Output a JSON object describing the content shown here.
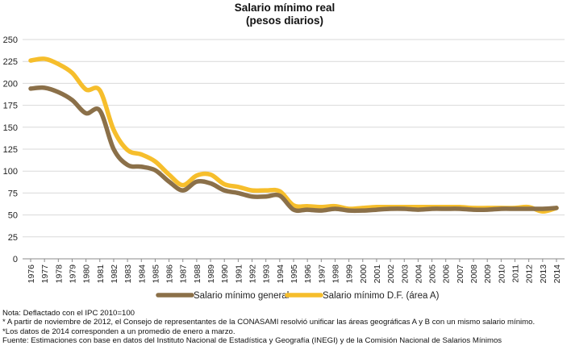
{
  "chart_data": {
    "type": "line",
    "title": "Salario mínimo real",
    "subtitle": "(pesos diarios)",
    "xlabel": "",
    "ylabel": "",
    "ylim": [
      0,
      250
    ],
    "yticks": [
      0,
      25,
      50,
      75,
      100,
      125,
      150,
      175,
      200,
      225,
      250
    ],
    "grid": true,
    "legend_position": "bottom",
    "x": [
      "1976",
      "1977",
      "1978",
      "1979",
      "1980",
      "1981",
      "1982",
      "1983",
      "1984",
      "1985",
      "1986",
      "1987",
      "1988",
      "1989",
      "1990",
      "1991",
      "1992",
      "1993",
      "1994",
      "1995",
      "1996",
      "1997",
      "1998",
      "1999",
      "2000",
      "2001",
      "2002",
      "2003",
      "2004",
      "2005",
      "2006",
      "2007",
      "2008",
      "2009",
      "2010",
      "2011",
      "2012",
      "2013",
      "2014"
    ],
    "series": [
      {
        "name": "Salario mínimo general",
        "color": "#8B7049",
        "values": [
          194,
          195,
          190,
          181,
          166,
          169,
          125,
          107,
          105,
          101,
          88,
          78,
          88,
          86,
          78,
          75,
          71,
          71,
          72,
          56,
          56,
          55,
          57,
          55,
          55,
          56,
          57,
          57,
          56,
          57,
          57,
          57,
          56,
          56,
          57,
          57,
          57,
          57,
          58
        ]
      },
      {
        "name": "Salario mínimo D.F. (área A)",
        "color": "#F6BE2C",
        "values": [
          226,
          228,
          222,
          212,
          193,
          192,
          147,
          124,
          119,
          111,
          96,
          84,
          95,
          96,
          85,
          82,
          78,
          78,
          77,
          61,
          60,
          59,
          60,
          57,
          58,
          59,
          59,
          59,
          59,
          59,
          59,
          59,
          58,
          58,
          58,
          58,
          59,
          54,
          58
        ]
      }
    ]
  },
  "notes": [
    "Nota: Deflactado con el IPC 2010=100",
    "* A partir de noviembre de 2012, el Consejo de representantes de la CONASAMI resolvió unificar las áreas geográficas A y B con un mismo salario mínimo.",
    "*Los datos de 2014 corresponden a un promedio de enero a marzo.",
    "Fuente: Estimaciones con base en datos del Instituto Nacional de Estadística y Geografía (INEGI) y de la Comisión Nacional de Salarios Mínimos"
  ]
}
